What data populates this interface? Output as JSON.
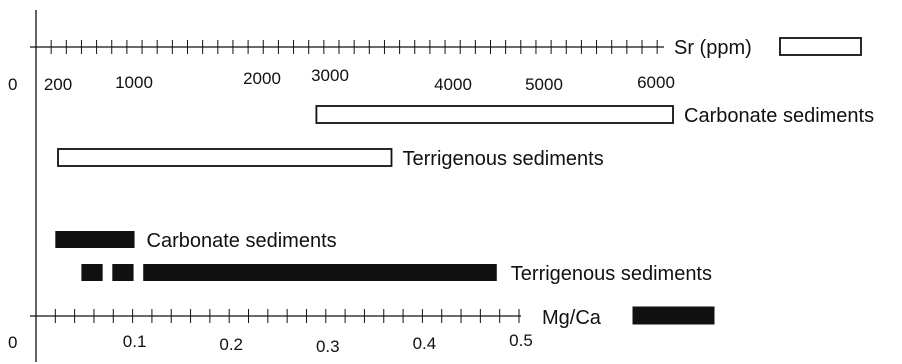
{
  "chart_data": [
    {
      "type": "bar",
      "orientation": "horizontal-range",
      "axis_label": "Sr (ppm)",
      "axis_origin_label": "0",
      "tick_labels": [
        {
          "value": 200,
          "text": "200"
        },
        {
          "value": 1000,
          "text": "1000"
        },
        {
          "value": 2000,
          "text": "2000"
        },
        {
          "value": 3000,
          "text": "3000"
        },
        {
          "value": 4000,
          "text": "4000"
        },
        {
          "value": 5000,
          "text": "5000"
        },
        {
          "value": 6000,
          "text": "6000"
        }
      ],
      "bar_style": "open",
      "legend_symbol": "open-rectangle",
      "series": [
        {
          "name": "Carbonate sediments",
          "range": [
            2800,
            6200
          ]
        },
        {
          "name": "Terrigenous sediments",
          "range": [
            200,
            3500
          ]
        }
      ]
    },
    {
      "type": "bar",
      "orientation": "horizontal-range",
      "axis_label": "Mg/Ca",
      "axis_origin_label": "0",
      "xlim": [
        0,
        0.5
      ],
      "tick_labels": [
        {
          "value": 0.1,
          "text": "0.1"
        },
        {
          "value": 0.2,
          "text": "0.2"
        },
        {
          "value": 0.3,
          "text": "0.3"
        },
        {
          "value": 0.4,
          "text": "0.4"
        },
        {
          "value": 0.5,
          "text": "0.5"
        }
      ],
      "bar_style": "filled",
      "legend_symbol": "filled-rectangle",
      "series": [
        {
          "name": "Carbonate sediments",
          "segments": [
            [
              0.02,
              0.102
            ]
          ]
        },
        {
          "name": "Terrigenous sediments",
          "segments": [
            [
              0.047,
              0.069
            ],
            [
              0.079,
              0.101
            ],
            [
              0.111,
              0.477
            ]
          ]
        }
      ]
    }
  ]
}
